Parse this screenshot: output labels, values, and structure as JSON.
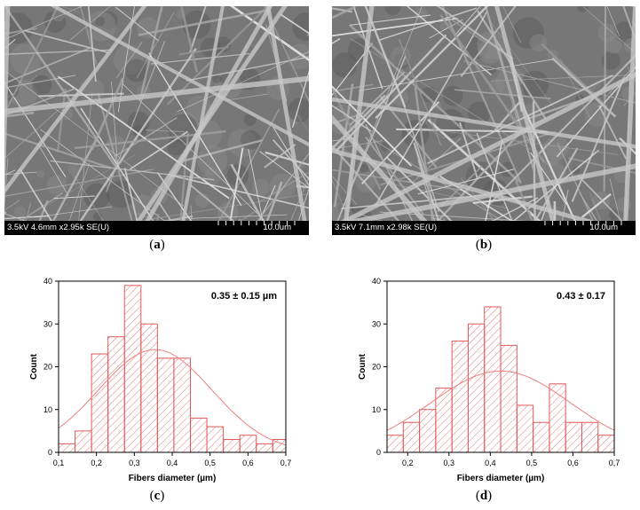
{
  "panels": [
    {
      "label_open": "(",
      "label_letter": "a",
      "label_close": ")",
      "sem_params": "3.5kV 4.6mm x2.95k SE(U)",
      "sem_scale": "10.0um"
    },
    {
      "label_open": "(",
      "label_letter": "b",
      "label_close": ")",
      "sem_params": "3.5kV 7.1mm x2.98k SE(U)",
      "sem_scale": "10.0um"
    },
    {
      "label_open": "(",
      "label_letter": "c",
      "label_close": ")"
    },
    {
      "label_open": "(",
      "label_letter": "d",
      "label_close": ")"
    }
  ],
  "colors": {
    "bar_stroke": "#e05a5a",
    "hatch": "#e06a6a",
    "fit": "#f08080",
    "sem_gray": "#6f6f6f"
  },
  "chart_data": [
    {
      "type": "bar",
      "title": "",
      "annotation": "0.35 ± 0.15 µm",
      "xlabel": "Fibers diameter (µm)",
      "ylabel": "Count",
      "xlim": [
        0.1,
        0.7
      ],
      "ylim": [
        0,
        40
      ],
      "xticks": [
        0.1,
        0.2,
        0.3,
        0.4,
        0.5,
        0.6,
        0.7
      ],
      "xtick_labels": [
        "0,1",
        "0,2",
        "0,3",
        "0,4",
        "0,5",
        "0,6",
        "0,7"
      ],
      "yticks": [
        0,
        10,
        20,
        30,
        40
      ],
      "ytick_labels": [
        "0",
        "10",
        "20",
        "30",
        "40"
      ],
      "bin_width": 0.0435,
      "bin_starts": [
        0.1,
        0.1435,
        0.187,
        0.2305,
        0.274,
        0.3175,
        0.361,
        0.4045,
        0.448,
        0.4915,
        0.535,
        0.5785,
        0.622,
        0.6655
      ],
      "values": [
        2,
        5,
        23,
        27,
        39,
        30,
        22,
        22,
        8,
        6,
        3,
        4,
        2,
        3
      ],
      "fit": {
        "type": "gaussian",
        "mean": 0.355,
        "sd": 0.15,
        "peak": 24
      },
      "grid": false
    },
    {
      "type": "bar",
      "title": "",
      "annotation": "0.43 ± 0.17",
      "xlabel": "Fibers diameter (µm)",
      "ylabel": "Count",
      "xlim": [
        0.15,
        0.7
      ],
      "ylim": [
        0,
        40
      ],
      "xticks": [
        0.2,
        0.3,
        0.4,
        0.5,
        0.6,
        0.7
      ],
      "xtick_labels": [
        "0,2",
        "0,3",
        "0,4",
        "0,5",
        "0,6",
        "0,7"
      ],
      "yticks": [
        0,
        10,
        20,
        30,
        40
      ],
      "ytick_labels": [
        "0",
        "10",
        "20",
        "30",
        "40"
      ],
      "bin_width": 0.0393,
      "bin_starts": [
        0.15,
        0.1893,
        0.2286,
        0.2679,
        0.3072,
        0.3465,
        0.3858,
        0.4251,
        0.4644,
        0.5037,
        0.543,
        0.5823,
        0.6216,
        0.6609
      ],
      "values": [
        4,
        7,
        10,
        15,
        26,
        30,
        34,
        25,
        11,
        7,
        16,
        7,
        7,
        4
      ],
      "fit": {
        "type": "gaussian",
        "mean": 0.425,
        "sd": 0.17,
        "peak": 19
      },
      "grid": false
    }
  ]
}
